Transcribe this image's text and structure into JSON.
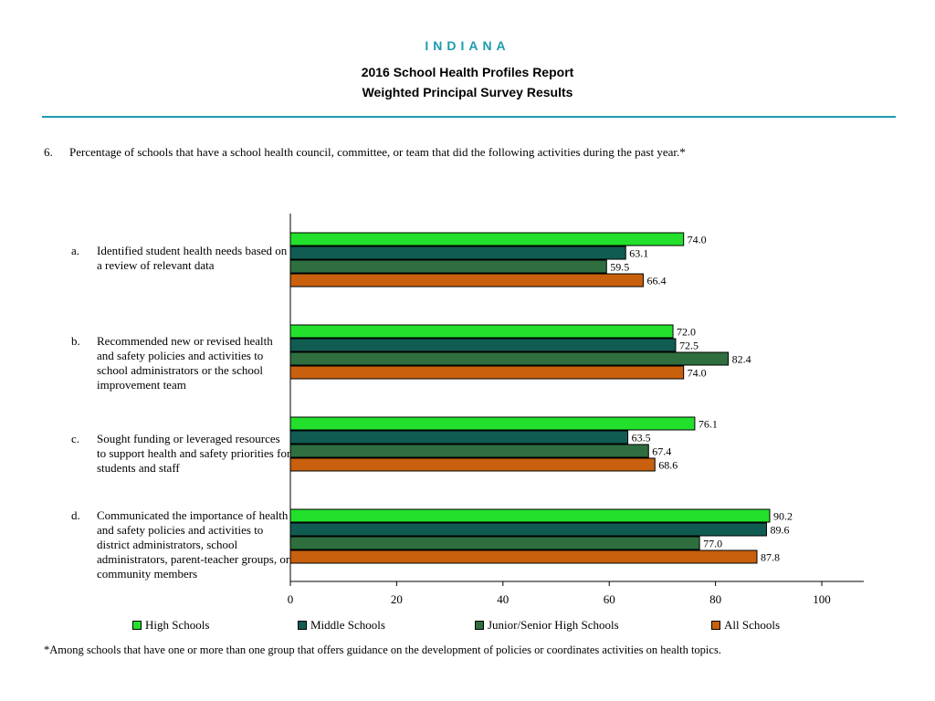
{
  "header": {
    "state": "INDIANA",
    "title_line1": "2016 School Health Profiles Report",
    "title_line2": "Weighted Principal Survey Results"
  },
  "question": {
    "number": "6.",
    "text": "Percentage of schools that have a school health council, committee, or team that did the following activities during the past year.*"
  },
  "footnote": "*Among schools that have one or more than one group that offers guidance on the development of policies or coordinates activities on health topics.",
  "colors": {
    "high_schools": "#22e02c",
    "middle_schools": "#115c52",
    "junior_senior": "#2e6e3f",
    "all_schools": "#c8600e"
  },
  "chart_data": {
    "type": "bar",
    "orientation": "horizontal",
    "categories": [
      {
        "letter": "a.",
        "label": "Identified student health needs based on a review of relevant data"
      },
      {
        "letter": "b.",
        "label": "Recommended new or revised health and safety policies and activities to school administrators or the school improvement team"
      },
      {
        "letter": "c.",
        "label": "Sought funding or leveraged resources to support health and safety priorities for students and staff"
      },
      {
        "letter": "d.",
        "label": "Communicated the importance of health and safety policies and activities to district administrators, school administrators, parent-teacher groups, or community members"
      }
    ],
    "series": [
      {
        "name": "High Schools",
        "color": "#22e02c",
        "values": [
          74.0,
          72.0,
          76.1,
          90.2
        ]
      },
      {
        "name": "Middle Schools",
        "color": "#115c52",
        "values": [
          63.1,
          72.5,
          63.5,
          89.6
        ]
      },
      {
        "name": "Junior/Senior High Schools",
        "color": "#2e6e3f",
        "values": [
          59.5,
          82.4,
          67.4,
          77.0
        ]
      },
      {
        "name": "All Schools",
        "color": "#c8600e",
        "values": [
          66.4,
          74.0,
          68.6,
          87.8
        ]
      }
    ],
    "value_labels": [
      [
        "74.0",
        "72.0",
        "76.1",
        "90.2"
      ],
      [
        "63.1",
        "72.5",
        "63.5",
        "89.6"
      ],
      [
        "59.5",
        "82.4",
        "67.4",
        "77.0"
      ],
      [
        "66.4",
        "74.0",
        "68.6",
        "87.8"
      ]
    ],
    "xlim": [
      0,
      100
    ],
    "xticks": [
      "0",
      "20",
      "40",
      "60",
      "80",
      "100"
    ],
    "legend_position": "bottom",
    "grid": false
  }
}
